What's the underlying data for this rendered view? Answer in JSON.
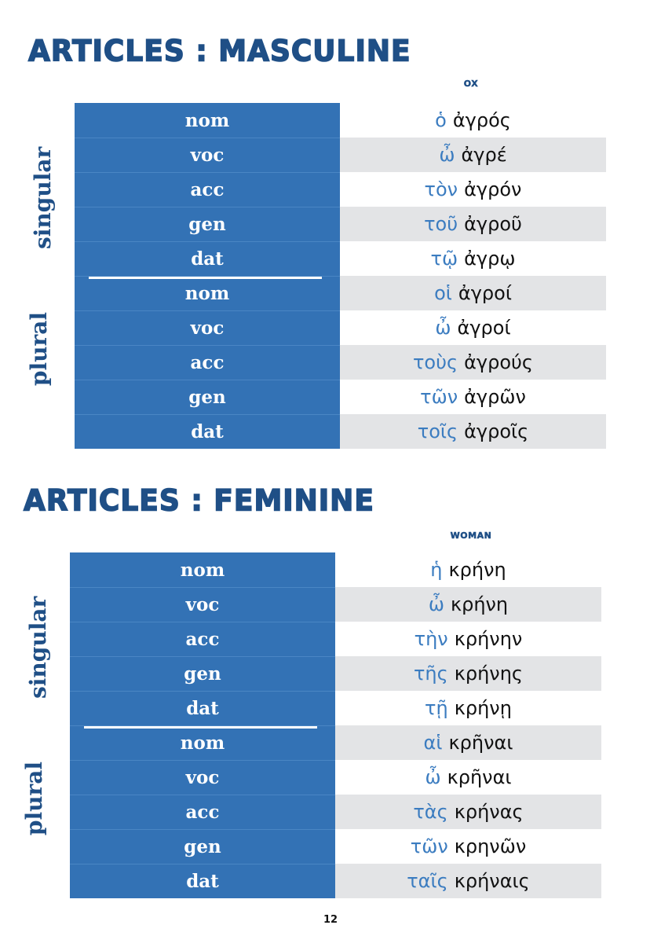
{
  "colors": {
    "heading": "#1f4f86",
    "case_column": "#3372b5",
    "shaded_row": "#e3e4e6",
    "article_text": "#3b7cc0",
    "noun_text": "#111111"
  },
  "sections": [
    {
      "heading": "Articles : Masculine",
      "word_label": "ox",
      "number_labels": {
        "singular": "singular",
        "plural": "plural"
      },
      "rows": [
        {
          "case": "nom",
          "article": "ὁ",
          "noun": "ἀγρός",
          "shaded": false
        },
        {
          "case": "voc",
          "article": "ὦ",
          "noun": "ἀγρέ",
          "shaded": true
        },
        {
          "case": "acc",
          "article": "τὸν",
          "noun": "ἀγρόν",
          "shaded": false
        },
        {
          "case": "gen",
          "article": "τοῦ",
          "noun": "ἀγροῦ",
          "shaded": true
        },
        {
          "case": "dat",
          "article": "τῷ",
          "noun": "ἀγρῳ",
          "shaded": false
        },
        {
          "case": "nom",
          "article": "οἱ",
          "noun": "ἀγροί",
          "shaded": true
        },
        {
          "case": "voc",
          "article": "ὦ",
          "noun": "ἀγροί",
          "shaded": false
        },
        {
          "case": "acc",
          "article": "τοὺς",
          "noun": "ἀγρούς",
          "shaded": true
        },
        {
          "case": "gen",
          "article": "τῶν",
          "noun": "ἀγρῶν",
          "shaded": false
        },
        {
          "case": "dat",
          "article": "τοῖς",
          "noun": "ἀγροῖς",
          "shaded": true
        }
      ]
    },
    {
      "heading": "Articles : Feminine",
      "word_label": "woman",
      "number_labels": {
        "singular": "singular",
        "plural": "plural"
      },
      "rows": [
        {
          "case": "nom",
          "article": "ἡ",
          "noun": "κρήνη",
          "shaded": false
        },
        {
          "case": "voc",
          "article": "ὦ",
          "noun": "κρήνη",
          "shaded": true
        },
        {
          "case": "acc",
          "article": "τὴν",
          "noun": "κρήνην",
          "shaded": false
        },
        {
          "case": "gen",
          "article": "τῆς",
          "noun": "κρήνης",
          "shaded": true
        },
        {
          "case": "dat",
          "article": "τῇ",
          "noun": "κρήνῃ",
          "shaded": false
        },
        {
          "case": "nom",
          "article": "αἱ",
          "noun": "κρῆναι",
          "shaded": true
        },
        {
          "case": "voc",
          "article": "ὦ",
          "noun": "κρῆναι",
          "shaded": false
        },
        {
          "case": "acc",
          "article": "τὰς",
          "noun": "κρήνας",
          "shaded": true
        },
        {
          "case": "gen",
          "article": "τῶν",
          "noun": "κρηνῶν",
          "shaded": false
        },
        {
          "case": "dat",
          "article": "ταῖς",
          "noun": "κρήναις",
          "shaded": true
        }
      ]
    }
  ],
  "page_number": "12"
}
